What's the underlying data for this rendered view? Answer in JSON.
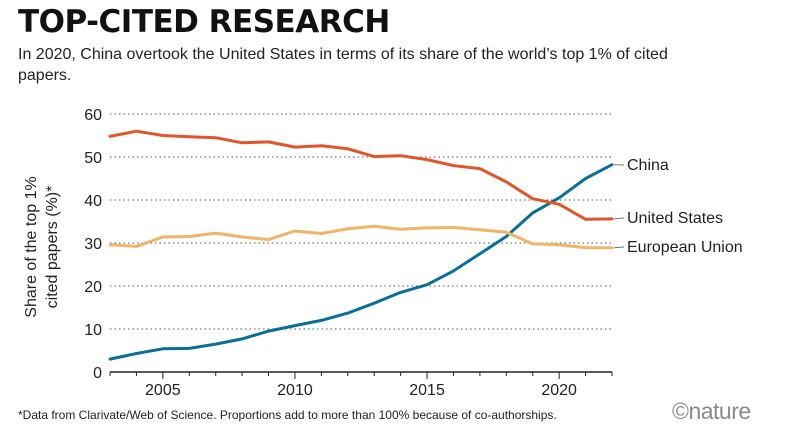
{
  "header": {
    "title": "TOP-CITED RESEARCH",
    "subtitle": "In 2020, China overtook the United States in terms of its share of the world’s top 1% of cited papers."
  },
  "footer": {
    "footnote": "*Data from Clarivate/Web of Science. Proportions add to more than 100% because of co-authorships.",
    "logo": "©nature"
  },
  "chart_data": {
    "type": "line",
    "title": "TOP-CITED RESEARCH",
    "xlabel": "",
    "ylabel_lines": [
      "Share of the top 1%",
      "cited papers (%)*"
    ],
    "xlim": [
      2003,
      2022
    ],
    "ylim": [
      0,
      60
    ],
    "x_ticks": [
      2005,
      2010,
      2015,
      2020
    ],
    "y_ticks": [
      0,
      10,
      20,
      30,
      40,
      50,
      60
    ],
    "grid": "horizontal-dotted",
    "legend": "inline-right",
    "x": [
      2003,
      2004,
      2005,
      2006,
      2007,
      2008,
      2009,
      2010,
      2011,
      2012,
      2013,
      2014,
      2015,
      2016,
      2017,
      2018,
      2019,
      2020,
      2021,
      2022
    ],
    "series": [
      {
        "name": "China",
        "color": "#0a6f98",
        "values": [
          3.0,
          4.3,
          5.4,
          5.5,
          6.5,
          7.7,
          9.5,
          10.8,
          12.0,
          13.7,
          16.0,
          18.5,
          20.3,
          23.5,
          27.5,
          31.5,
          37.0,
          40.5,
          45.0,
          48.2
        ]
      },
      {
        "name": "United States",
        "color": "#e3542a",
        "values": [
          54.8,
          56.0,
          55.0,
          54.7,
          54.5,
          53.3,
          53.5,
          52.3,
          52.6,
          51.9,
          50.1,
          50.3,
          49.4,
          48.0,
          47.3,
          44.2,
          40.3,
          39.0,
          35.5,
          35.6
        ]
      },
      {
        "name": "European Union",
        "color": "#f2b366",
        "values": [
          29.6,
          29.2,
          31.4,
          31.5,
          32.3,
          31.4,
          30.8,
          32.8,
          32.2,
          33.3,
          33.9,
          33.2,
          33.5,
          33.6,
          33.1,
          32.5,
          29.8,
          29.6,
          28.9,
          28.9
        ]
      }
    ]
  }
}
